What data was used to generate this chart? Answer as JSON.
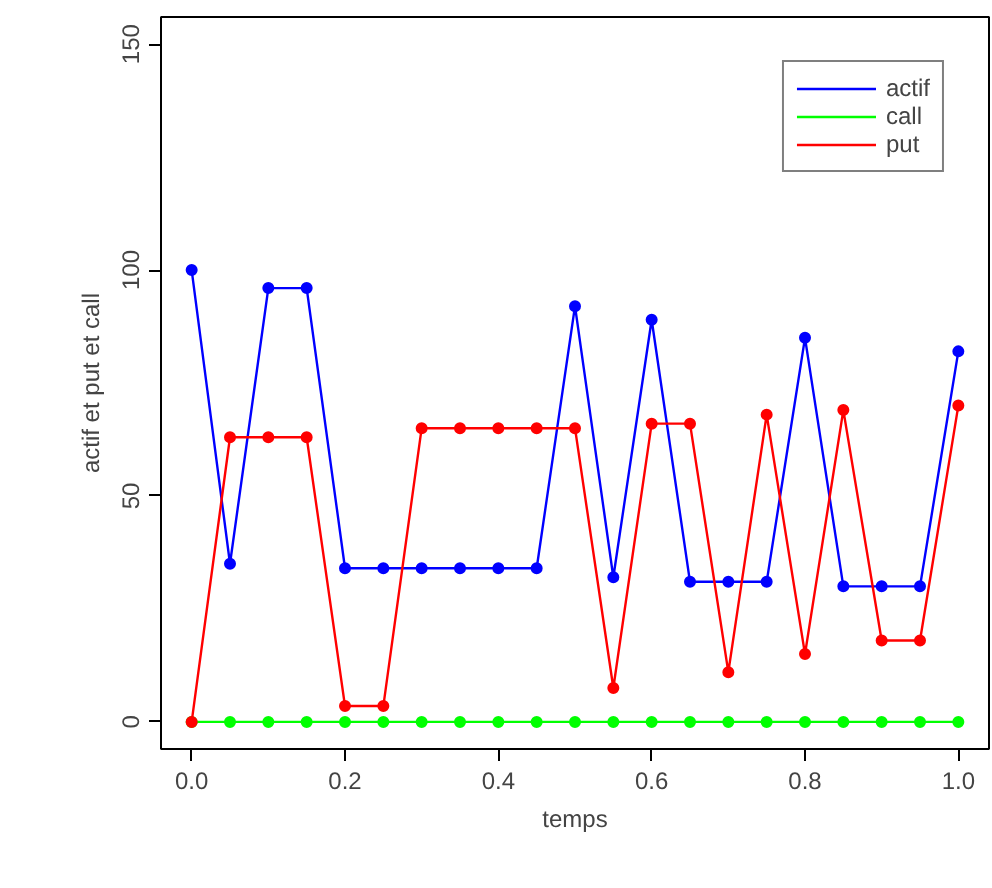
{
  "chart_data": {
    "type": "line",
    "xlabel": "temps",
    "ylabel": "actif et put et call",
    "x": [
      0,
      0.05,
      0.1,
      0.15,
      0.2,
      0.25,
      0.3,
      0.35,
      0.4,
      0.45,
      0.5,
      0.55,
      0.6,
      0.65,
      0.7,
      0.75,
      0.8,
      0.85,
      0.9,
      0.95,
      1.0
    ],
    "series": [
      {
        "name": "actif",
        "color": "#0000ff",
        "values": [
          100,
          35,
          96,
          96,
          34,
          34,
          34,
          34,
          34,
          34,
          92,
          32,
          89,
          31,
          31,
          31,
          85,
          30,
          30,
          30,
          82
        ]
      },
      {
        "name": "call",
        "color": "#00ff00",
        "values": [
          0,
          0,
          0,
          0,
          0,
          0,
          0,
          0,
          0,
          0,
          0,
          0,
          0,
          0,
          0,
          0,
          0,
          0,
          0,
          0,
          0
        ]
      },
      {
        "name": "put",
        "color": "#ff0000",
        "values": [
          0,
          63,
          63,
          63,
          3.5,
          3.5,
          65,
          65,
          65,
          65,
          65,
          7.5,
          66,
          66,
          11,
          68,
          15,
          69,
          18,
          18,
          70
        ]
      }
    ],
    "xlim": [
      -0.04,
      1.04
    ],
    "ylim": [
      -6,
      156
    ],
    "xticks": [
      {
        "value": 0,
        "label": "0.0"
      },
      {
        "value": 0.2,
        "label": "0.2"
      },
      {
        "value": 0.4,
        "label": "0.4"
      },
      {
        "value": 0.6,
        "label": "0.6"
      },
      {
        "value": 0.8,
        "label": "0.8"
      },
      {
        "value": 1,
        "label": "1.0"
      }
    ],
    "yticks": [
      0,
      50,
      100,
      150
    ],
    "grid": false,
    "legend": "top right",
    "marker": "circle",
    "line_style": "solid"
  }
}
